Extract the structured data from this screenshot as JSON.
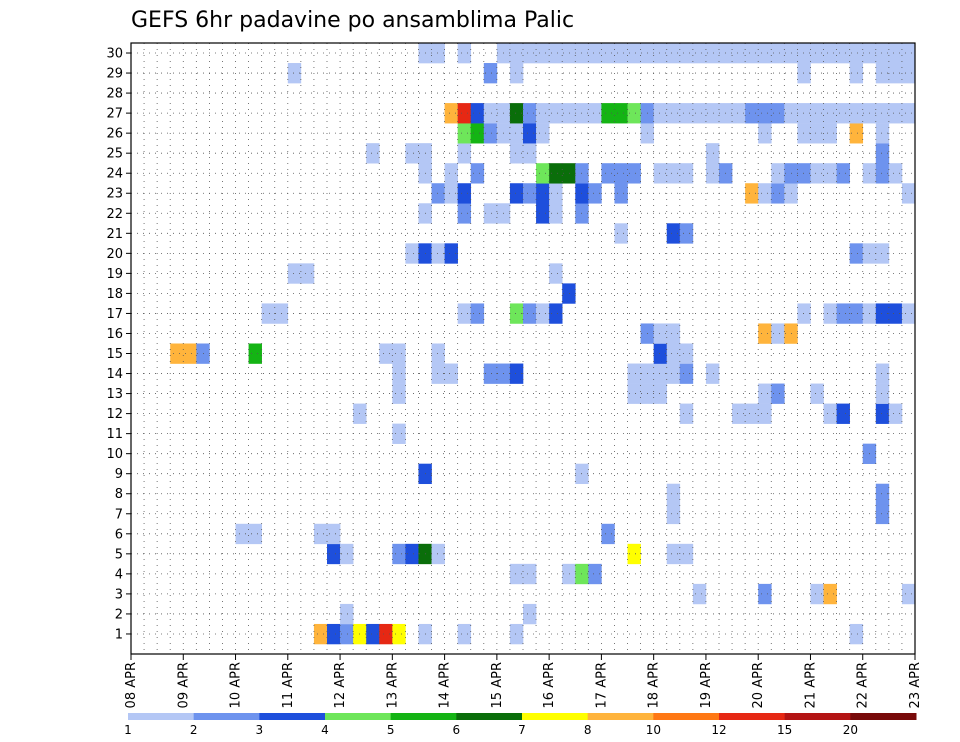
{
  "chart_data": {
    "type": "heatmap",
    "title": "GEFS 6hr padavine po ansamblima Palic",
    "xlabel": "",
    "ylabel": "",
    "x_categories": [
      "08 APR",
      "09 APR",
      "10 APR",
      "11 APR",
      "12 APR",
      "13 APR",
      "14 APR",
      "15 APR",
      "16 APR",
      "17 APR",
      "18 APR",
      "19 APR",
      "20 APR",
      "21 APR",
      "22 APR",
      "23 APR"
    ],
    "x_time_steps_per_day": 4,
    "x_time_steps_total": 60,
    "y_members": [
      "1",
      "2",
      "3",
      "4",
      "5",
      "6",
      "7",
      "8",
      "9",
      "10",
      "11",
      "12",
      "13",
      "14",
      "15",
      "16",
      "17",
      "18",
      "19",
      "20",
      "21",
      "22",
      "23",
      "24",
      "25",
      "26",
      "27",
      "28",
      "29",
      "30"
    ],
    "grid": true,
    "colorbar": {
      "placement": "bottom",
      "colors": [
        "#b4c7f5",
        "#6e93ee",
        "#1e4fdc",
        "#6ee65a",
        "#14b414",
        "#0a6e0a",
        "#ffff00",
        "#ffb43c",
        "#ff7814",
        "#e62814",
        "#b41414",
        "#780a0a"
      ],
      "labels": [
        "1",
        "2",
        "3",
        "4",
        "5",
        "6",
        "7",
        "8",
        "10",
        "12",
        "15",
        "20"
      ]
    },
    "cells_note": "each cell: [time_step (0=08 APR 00Z), member, precip_class (1..12 index into colorbar.colors)]",
    "cells": [
      [
        14,
        0,
        8
      ],
      [
        15,
        0,
        3
      ],
      [
        16,
        0,
        2
      ],
      [
        17,
        0,
        7
      ],
      [
        18,
        0,
        3
      ],
      [
        19,
        0,
        10
      ],
      [
        20,
        0,
        7
      ],
      [
        22,
        0,
        1
      ],
      [
        25,
        0,
        1
      ],
      [
        29,
        0,
        1
      ],
      [
        55,
        0,
        1
      ],
      [
        16,
        1,
        1
      ],
      [
        30,
        1,
        1
      ],
      [
        43,
        2,
        1
      ],
      [
        48,
        2,
        2
      ],
      [
        52,
        2,
        1
      ],
      [
        53,
        2,
        8
      ],
      [
        59,
        2,
        1
      ],
      [
        29,
        3,
        1
      ],
      [
        30,
        3,
        1
      ],
      [
        33,
        3,
        1
      ],
      [
        34,
        3,
        4
      ],
      [
        35,
        3,
        2
      ],
      [
        15,
        4,
        3
      ],
      [
        16,
        4,
        1
      ],
      [
        20,
        4,
        2
      ],
      [
        21,
        4,
        3
      ],
      [
        22,
        4,
        6
      ],
      [
        23,
        4,
        1
      ],
      [
        38,
        4,
        7
      ],
      [
        41,
        4,
        1
      ],
      [
        42,
        4,
        1
      ],
      [
        8,
        5,
        1
      ],
      [
        9,
        5,
        1
      ],
      [
        14,
        5,
        1
      ],
      [
        15,
        5,
        1
      ],
      [
        36,
        5,
        2
      ],
      [
        41,
        6,
        1
      ],
      [
        57,
        6,
        2
      ],
      [
        41,
        7,
        1
      ],
      [
        57,
        7,
        2
      ],
      [
        22,
        8,
        3
      ],
      [
        34,
        8,
        1
      ],
      [
        56,
        9,
        2
      ],
      [
        20,
        10,
        1
      ],
      [
        17,
        11,
        1
      ],
      [
        42,
        11,
        1
      ],
      [
        46,
        11,
        1
      ],
      [
        47,
        11,
        1
      ],
      [
        48,
        11,
        1
      ],
      [
        53,
        11,
        1
      ],
      [
        54,
        11,
        3
      ],
      [
        57,
        11,
        3
      ],
      [
        58,
        11,
        1
      ],
      [
        20,
        12,
        1
      ],
      [
        38,
        12,
        1
      ],
      [
        39,
        12,
        1
      ],
      [
        40,
        12,
        1
      ],
      [
        48,
        12,
        1
      ],
      [
        49,
        12,
        2
      ],
      [
        52,
        12,
        1
      ],
      [
        57,
        12,
        1
      ],
      [
        20,
        13,
        1
      ],
      [
        23,
        13,
        1
      ],
      [
        24,
        13,
        1
      ],
      [
        27,
        13,
        2
      ],
      [
        28,
        13,
        2
      ],
      [
        29,
        13,
        3
      ],
      [
        38,
        13,
        1
      ],
      [
        39,
        13,
        1
      ],
      [
        40,
        13,
        1
      ],
      [
        41,
        13,
        1
      ],
      [
        42,
        13,
        2
      ],
      [
        44,
        13,
        1
      ],
      [
        57,
        13,
        1
      ],
      [
        3,
        14,
        8
      ],
      [
        4,
        14,
        8
      ],
      [
        5,
        14,
        2
      ],
      [
        19,
        14,
        1
      ],
      [
        20,
        14,
        1
      ],
      [
        23,
        14,
        1
      ],
      [
        40,
        14,
        3
      ],
      [
        41,
        14,
        1
      ],
      [
        42,
        14,
        1
      ],
      [
        9,
        14,
        5
      ],
      [
        39,
        15,
        2
      ],
      [
        40,
        15,
        1
      ],
      [
        41,
        15,
        1
      ],
      [
        48,
        15,
        8
      ],
      [
        49,
        15,
        1
      ],
      [
        50,
        15,
        8
      ],
      [
        10,
        16,
        1
      ],
      [
        11,
        16,
        1
      ],
      [
        25,
        16,
        1
      ],
      [
        26,
        16,
        2
      ],
      [
        29,
        16,
        4
      ],
      [
        30,
        16,
        2
      ],
      [
        31,
        16,
        1
      ],
      [
        32,
        16,
        3
      ],
      [
        51,
        16,
        1
      ],
      [
        53,
        16,
        1
      ],
      [
        54,
        16,
        2
      ],
      [
        55,
        16,
        2
      ],
      [
        56,
        16,
        1
      ],
      [
        57,
        16,
        3
      ],
      [
        58,
        16,
        3
      ],
      [
        59,
        16,
        1
      ],
      [
        33,
        17,
        3
      ],
      [
        12,
        18,
        1
      ],
      [
        13,
        18,
        1
      ],
      [
        32,
        18,
        1
      ],
      [
        21,
        19,
        1
      ],
      [
        22,
        19,
        3
      ],
      [
        23,
        19,
        1
      ],
      [
        24,
        19,
        3
      ],
      [
        55,
        19,
        2
      ],
      [
        56,
        19,
        1
      ],
      [
        57,
        19,
        1
      ],
      [
        37,
        20,
        1
      ],
      [
        41,
        20,
        3
      ],
      [
        42,
        20,
        2
      ],
      [
        22,
        21,
        1
      ],
      [
        25,
        21,
        2
      ],
      [
        27,
        21,
        1
      ],
      [
        28,
        21,
        1
      ],
      [
        31,
        21,
        3
      ],
      [
        32,
        21,
        1
      ],
      [
        34,
        21,
        2
      ],
      [
        23,
        22,
        2
      ],
      [
        24,
        22,
        1
      ],
      [
        25,
        22,
        3
      ],
      [
        29,
        22,
        3
      ],
      [
        30,
        22,
        2
      ],
      [
        31,
        22,
        3
      ],
      [
        32,
        22,
        1
      ],
      [
        34,
        22,
        3
      ],
      [
        35,
        22,
        2
      ],
      [
        37,
        22,
        2
      ],
      [
        47,
        22,
        8
      ],
      [
        48,
        22,
        1
      ],
      [
        49,
        22,
        2
      ],
      [
        50,
        22,
        1
      ],
      [
        59,
        22,
        1
      ],
      [
        22,
        23,
        1
      ],
      [
        24,
        23,
        1
      ],
      [
        26,
        23,
        2
      ],
      [
        31,
        23,
        4
      ],
      [
        32,
        23,
        6
      ],
      [
        33,
        23,
        6
      ],
      [
        34,
        23,
        2
      ],
      [
        36,
        23,
        2
      ],
      [
        37,
        23,
        2
      ],
      [
        38,
        23,
        2
      ],
      [
        40,
        23,
        1
      ],
      [
        41,
        23,
        1
      ],
      [
        42,
        23,
        1
      ],
      [
        44,
        23,
        1
      ],
      [
        45,
        23,
        2
      ],
      [
        49,
        23,
        1
      ],
      [
        50,
        23,
        2
      ],
      [
        51,
        23,
        2
      ],
      [
        52,
        23,
        1
      ],
      [
        53,
        23,
        1
      ],
      [
        54,
        23,
        2
      ],
      [
        56,
        23,
        1
      ],
      [
        57,
        23,
        2
      ],
      [
        58,
        23,
        1
      ],
      [
        18,
        24,
        1
      ],
      [
        21,
        24,
        1
      ],
      [
        22,
        24,
        1
      ],
      [
        25,
        24,
        1
      ],
      [
        29,
        24,
        1
      ],
      [
        30,
        24,
        1
      ],
      [
        44,
        24,
        1
      ],
      [
        57,
        24,
        2
      ],
      [
        25,
        25,
        4
      ],
      [
        26,
        25,
        5
      ],
      [
        27,
        25,
        2
      ],
      [
        28,
        25,
        1
      ],
      [
        29,
        25,
        1
      ],
      [
        30,
        25,
        3
      ],
      [
        31,
        25,
        1
      ],
      [
        39,
        25,
        1
      ],
      [
        48,
        25,
        1
      ],
      [
        51,
        25,
        1
      ],
      [
        52,
        25,
        1
      ],
      [
        53,
        25,
        1
      ],
      [
        55,
        25,
        8
      ],
      [
        57,
        25,
        1
      ],
      [
        24,
        26,
        8
      ],
      [
        25,
        26,
        10
      ],
      [
        26,
        26,
        3
      ],
      [
        27,
        26,
        1
      ],
      [
        28,
        26,
        1
      ],
      [
        29,
        26,
        6
      ],
      [
        30,
        26,
        2
      ],
      [
        31,
        26,
        1
      ],
      [
        32,
        26,
        1
      ],
      [
        33,
        26,
        1
      ],
      [
        34,
        26,
        1
      ],
      [
        35,
        26,
        1
      ],
      [
        36,
        26,
        5
      ],
      [
        37,
        26,
        5
      ],
      [
        38,
        26,
        4
      ],
      [
        39,
        26,
        2
      ],
      [
        40,
        26,
        1
      ],
      [
        41,
        26,
        1
      ],
      [
        42,
        26,
        1
      ],
      [
        43,
        26,
        1
      ],
      [
        44,
        26,
        1
      ],
      [
        45,
        26,
        1
      ],
      [
        46,
        26,
        1
      ],
      [
        47,
        26,
        2
      ],
      [
        48,
        26,
        2
      ],
      [
        49,
        26,
        2
      ],
      [
        50,
        26,
        1
      ],
      [
        51,
        26,
        1
      ],
      [
        52,
        26,
        1
      ],
      [
        53,
        26,
        1
      ],
      [
        54,
        26,
        1
      ],
      [
        55,
        26,
        1
      ],
      [
        56,
        26,
        1
      ],
      [
        57,
        26,
        1
      ],
      [
        58,
        26,
        1
      ],
      [
        59,
        26,
        1
      ],
      [
        12,
        28,
        1
      ],
      [
        27,
        28,
        2
      ],
      [
        29,
        28,
        1
      ],
      [
        51,
        28,
        1
      ],
      [
        55,
        28,
        1
      ],
      [
        57,
        28,
        1
      ],
      [
        58,
        28,
        1
      ],
      [
        59,
        28,
        1
      ],
      [
        22,
        29,
        1
      ],
      [
        23,
        29,
        1
      ],
      [
        25,
        29,
        1
      ],
      [
        28,
        29,
        1
      ],
      [
        29,
        29,
        1
      ],
      [
        30,
        29,
        1
      ],
      [
        31,
        29,
        1
      ],
      [
        32,
        29,
        1
      ],
      [
        33,
        29,
        1
      ],
      [
        34,
        29,
        1
      ],
      [
        35,
        29,
        1
      ],
      [
        36,
        29,
        1
      ],
      [
        37,
        29,
        1
      ],
      [
        38,
        29,
        1
      ],
      [
        39,
        29,
        1
      ],
      [
        40,
        29,
        1
      ],
      [
        41,
        29,
        1
      ],
      [
        42,
        29,
        1
      ],
      [
        43,
        29,
        1
      ],
      [
        44,
        29,
        1
      ],
      [
        45,
        29,
        1
      ],
      [
        46,
        29,
        1
      ],
      [
        47,
        29,
        1
      ],
      [
        48,
        29,
        1
      ],
      [
        49,
        29,
        1
      ],
      [
        50,
        29,
        1
      ],
      [
        51,
        29,
        1
      ],
      [
        52,
        29,
        1
      ],
      [
        53,
        29,
        1
      ],
      [
        54,
        29,
        1
      ],
      [
        55,
        29,
        1
      ],
      [
        56,
        29,
        1
      ],
      [
        57,
        29,
        1
      ],
      [
        58,
        29,
        1
      ],
      [
        59,
        29,
        1
      ]
    ],
    "cells_main": [
      [
        0,
        -1,
        0
      ]
    ]
  }
}
